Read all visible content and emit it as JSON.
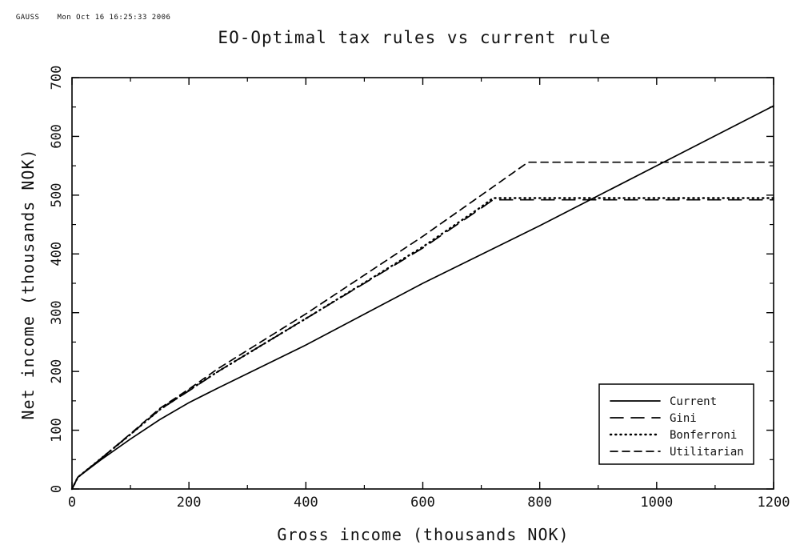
{
  "header": {
    "program": "GAUSS",
    "timestamp": "Mon Oct 16 16:25:33 2006"
  },
  "chart_data": {
    "type": "line",
    "title": "EO-Optimal tax rules vs current rule",
    "xlabel": "Gross income (thousands NOK)",
    "ylabel": "Net income (thousands NOK)",
    "xlim": [
      0,
      1200
    ],
    "ylim": [
      0,
      700
    ],
    "xticks": [
      0,
      200,
      400,
      600,
      800,
      1000,
      1200
    ],
    "yticks": [
      0,
      100,
      200,
      300,
      400,
      500,
      600,
      700
    ],
    "grid": false,
    "legend_position": "bottom-right",
    "series": [
      {
        "name": "Current",
        "style": "solid",
        "x": [
          0,
          10,
          50,
          100,
          150,
          200,
          250,
          400,
          600,
          800,
          1000,
          1200
        ],
        "y": [
          0,
          20,
          50,
          85,
          118,
          147,
          172,
          245,
          350,
          448,
          550,
          652
        ]
      },
      {
        "name": "Gini",
        "style": "longdash",
        "x": [
          0,
          10,
          50,
          100,
          150,
          200,
          250,
          400,
          600,
          700,
          720,
          1200
        ],
        "y": [
          0,
          20,
          52,
          93,
          135,
          167,
          200,
          290,
          410,
          478,
          492,
          492
        ]
      },
      {
        "name": "Bonferroni",
        "style": "dotted",
        "x": [
          0,
          10,
          50,
          100,
          150,
          200,
          250,
          400,
          600,
          700,
          720,
          1200
        ],
        "y": [
          0,
          20,
          52,
          93,
          135,
          168,
          200,
          290,
          412,
          480,
          495,
          495
        ]
      },
      {
        "name": "Utilitarian",
        "style": "shortdash",
        "x": [
          0,
          10,
          50,
          100,
          150,
          200,
          250,
          400,
          600,
          700,
          780,
          1200
        ],
        "y": [
          0,
          20,
          52,
          94,
          137,
          170,
          205,
          298,
          430,
          500,
          556,
          556
        ]
      }
    ]
  }
}
